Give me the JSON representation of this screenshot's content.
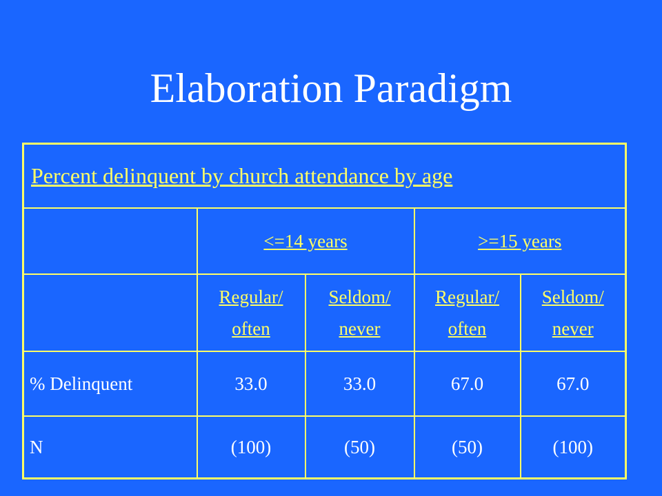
{
  "slide": {
    "title": "Elaboration Paradigm"
  },
  "table": {
    "caption": "Percent delinquent by church attendance by age",
    "age_groups": [
      {
        "label": "<=14 years"
      },
      {
        "label": ">=15 years"
      }
    ],
    "attendance_headers": [
      {
        "line1": "Regular/",
        "line2": "often"
      },
      {
        "line1": "Seldom/",
        "line2": "never"
      },
      {
        "line1": "Regular/",
        "line2": "often"
      },
      {
        "line1": "Seldom/",
        "line2": "never"
      }
    ],
    "rows": [
      {
        "label": "% Delinquent",
        "values": [
          "33.0",
          "33.0",
          "67.0",
          "67.0"
        ]
      },
      {
        "label": "N",
        "values": [
          "(100)",
          "(50)",
          "(50)",
          "(100)"
        ]
      }
    ]
  },
  "colors": {
    "background": "#1a66ff",
    "accent": "#ffff66",
    "text": "#ffffff"
  }
}
